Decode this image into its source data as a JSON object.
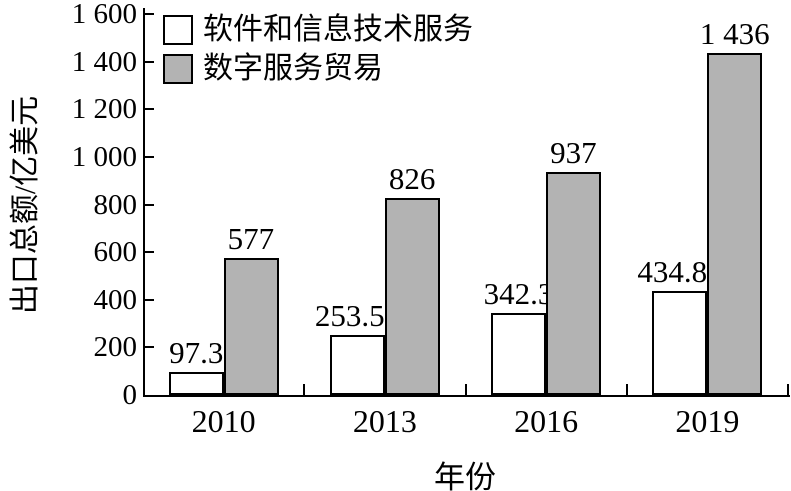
{
  "chart_data": {
    "type": "bar",
    "title": "",
    "categories": [
      "2010",
      "2013",
      "2016",
      "2019"
    ],
    "series": [
      {
        "name": "软件和信息技术服务",
        "color": "#ffffff",
        "values": [
          97.3,
          253.56,
          342.3,
          434.81
        ],
        "labels": [
          "97.3",
          "253.56",
          "342.3",
          "434.81"
        ]
      },
      {
        "name": "数字服务贸易",
        "color": "#b3b3b3",
        "values": [
          577,
          826,
          937,
          1436
        ],
        "labels": [
          "577",
          "826",
          "937",
          "1 436"
        ]
      }
    ],
    "xlabel": "年份",
    "ylabel": "出口总额/亿美元",
    "ylim": [
      0,
      1600
    ],
    "ytick_step": 200,
    "ytick_labels": [
      "0",
      "200",
      "400",
      "600",
      "800",
      "1 000",
      "1 200",
      "1 400",
      "1 600"
    ],
    "legend_position": "top-left",
    "grid": false,
    "bar_border_color": "#000000",
    "axis_color": "#000000"
  }
}
